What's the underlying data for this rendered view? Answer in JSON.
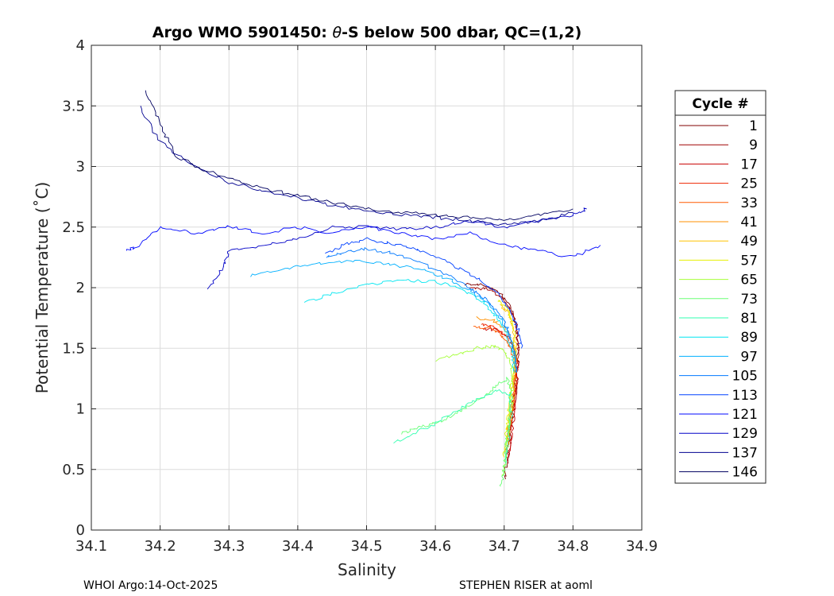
{
  "chart_data": {
    "type": "line",
    "title_prefix": "Argo WMO 5901450: ",
    "title_theta": "θ",
    "title_suffix": "-S below 500 dbar,  QC=(1,2)",
    "xlabel": "Salinity",
    "ylabel": "Potential Temperature (˚C)",
    "xlim": [
      34.1,
      34.9
    ],
    "ylim": [
      0,
      4
    ],
    "xticks": [
      34.1,
      34.2,
      34.3,
      34.4,
      34.5,
      34.6,
      34.7,
      34.8,
      34.9
    ],
    "xtick_labels": [
      "34.1",
      "34.2",
      "34.3",
      "34.4",
      "34.5",
      "34.6",
      "34.7",
      "34.8",
      "34.9"
    ],
    "yticks": [
      0,
      0.5,
      1,
      1.5,
      2,
      2.5,
      3,
      3.5,
      4
    ],
    "ytick_labels": [
      "0",
      "0.5",
      "1",
      "1.5",
      "2",
      "2.5",
      "3",
      "3.5",
      "4"
    ],
    "grid": true,
    "legend": {
      "title": "Cycle #",
      "placement": "outside-right",
      "entries": [
        "1",
        "9",
        "17",
        "25",
        "33",
        "41",
        "49",
        "57",
        "65",
        "73",
        "81",
        "89",
        "97",
        "105",
        "113",
        "121",
        "129",
        "137",
        "146"
      ],
      "colors": [
        "#800000",
        "#a00000",
        "#c80000",
        "#ee2400",
        "#ff5a00",
        "#ff9000",
        "#ffc400",
        "#e6f000",
        "#a6ff3a",
        "#6aff76",
        "#32ffb0",
        "#00e6f0",
        "#00b0ff",
        "#0078ff",
        "#0040ff",
        "#0008ff",
        "#0000c8",
        "#000090",
        "#000060"
      ]
    },
    "series": [
      {
        "cycle": "1",
        "points": [
          [
            34.645,
            2.03
          ],
          [
            34.67,
            2.02
          ],
          [
            34.69,
            1.97
          ],
          [
            34.705,
            1.88
          ],
          [
            34.715,
            1.75
          ],
          [
            34.72,
            1.6
          ],
          [
            34.72,
            1.4
          ],
          [
            34.716,
            1.2
          ],
          [
            34.712,
            1.0
          ],
          [
            34.708,
            0.8
          ],
          [
            34.704,
            0.6
          ],
          [
            34.702,
            0.42
          ]
        ]
      },
      {
        "cycle": "9",
        "points": [
          [
            34.65,
            2.0
          ],
          [
            34.675,
            1.99
          ],
          [
            34.695,
            1.93
          ],
          [
            34.708,
            1.83
          ],
          [
            34.716,
            1.7
          ],
          [
            34.72,
            1.55
          ],
          [
            34.72,
            1.35
          ],
          [
            34.717,
            1.15
          ],
          [
            34.713,
            0.95
          ],
          [
            34.709,
            0.75
          ],
          [
            34.706,
            0.55
          ]
        ]
      },
      {
        "cycle": "17",
        "points": [
          [
            34.67,
            1.66
          ],
          [
            34.69,
            1.65
          ],
          [
            34.705,
            1.6
          ],
          [
            34.715,
            1.5
          ],
          [
            34.72,
            1.35
          ],
          [
            34.718,
            1.15
          ],
          [
            34.714,
            0.95
          ],
          [
            34.71,
            0.75
          ],
          [
            34.706,
            0.6
          ]
        ]
      },
      {
        "cycle": "25",
        "points": [
          [
            34.665,
            1.7
          ],
          [
            34.685,
            1.68
          ],
          [
            34.7,
            1.62
          ],
          [
            34.712,
            1.52
          ],
          [
            34.718,
            1.38
          ],
          [
            34.716,
            1.18
          ],
          [
            34.712,
            0.98
          ],
          [
            34.708,
            0.8
          ]
        ]
      },
      {
        "cycle": "33",
        "points": [
          [
            34.655,
            1.68
          ],
          [
            34.68,
            1.67
          ],
          [
            34.698,
            1.6
          ],
          [
            34.71,
            1.5
          ],
          [
            34.716,
            1.36
          ],
          [
            34.714,
            1.16
          ],
          [
            34.71,
            0.96
          ],
          [
            34.706,
            0.78
          ],
          [
            34.703,
            0.62
          ]
        ]
      },
      {
        "cycle": "41",
        "points": [
          [
            34.66,
            1.75
          ],
          [
            34.683,
            1.73
          ],
          [
            34.7,
            1.67
          ],
          [
            34.711,
            1.56
          ],
          [
            34.717,
            1.42
          ],
          [
            34.716,
            1.22
          ],
          [
            34.712,
            1.02
          ],
          [
            34.708,
            0.82
          ],
          [
            34.704,
            0.65
          ]
        ]
      },
      {
        "cycle": "49",
        "points": [
          [
            34.695,
            1.85
          ],
          [
            34.705,
            1.8
          ],
          [
            34.712,
            1.7
          ],
          [
            34.716,
            1.55
          ],
          [
            34.715,
            1.35
          ],
          [
            34.711,
            1.15
          ],
          [
            34.707,
            0.95
          ],
          [
            34.704,
            0.75
          ]
        ]
      },
      {
        "cycle": "57",
        "points": [
          [
            34.69,
            1.9
          ],
          [
            34.702,
            1.85
          ],
          [
            34.71,
            1.75
          ],
          [
            34.715,
            1.6
          ],
          [
            34.715,
            1.4
          ],
          [
            34.711,
            1.2
          ],
          [
            34.707,
            1.0
          ],
          [
            34.703,
            0.8
          ],
          [
            34.7,
            0.6
          ]
        ]
      },
      {
        "cycle": "65",
        "points": [
          [
            34.6,
            1.4
          ],
          [
            34.63,
            1.45
          ],
          [
            34.66,
            1.5
          ],
          [
            34.685,
            1.52
          ],
          [
            34.7,
            1.48
          ],
          [
            34.71,
            1.38
          ],
          [
            34.713,
            1.2
          ],
          [
            34.71,
            1.0
          ],
          [
            34.706,
            0.8
          ],
          [
            34.702,
            0.6
          ],
          [
            34.698,
            0.45
          ]
        ]
      },
      {
        "cycle": "73",
        "points": [
          [
            34.55,
            0.8
          ],
          [
            34.58,
            0.85
          ],
          [
            34.61,
            0.9
          ],
          [
            34.64,
            1.0
          ],
          [
            34.67,
            1.1
          ],
          [
            34.69,
            1.2
          ],
          [
            34.705,
            1.25
          ],
          [
            34.71,
            1.1
          ],
          [
            34.707,
            0.9
          ],
          [
            34.703,
            0.7
          ],
          [
            34.7,
            0.5
          ],
          [
            34.695,
            0.36
          ]
        ]
      },
      {
        "cycle": "81",
        "points": [
          [
            34.54,
            0.72
          ],
          [
            34.57,
            0.8
          ],
          [
            34.6,
            0.88
          ],
          [
            34.63,
            0.98
          ],
          [
            34.66,
            1.08
          ],
          [
            34.69,
            1.15
          ],
          [
            34.708,
            1.12
          ],
          [
            34.71,
            0.95
          ],
          [
            34.706,
            0.75
          ],
          [
            34.702,
            0.55
          ]
        ]
      },
      {
        "cycle": "89",
        "points": [
          [
            34.41,
            1.88
          ],
          [
            34.45,
            1.95
          ],
          [
            34.5,
            2.02
          ],
          [
            34.55,
            2.06
          ],
          [
            34.6,
            2.05
          ],
          [
            34.64,
            1.98
          ],
          [
            34.67,
            1.88
          ],
          [
            34.69,
            1.75
          ],
          [
            34.705,
            1.6
          ],
          [
            34.712,
            1.45
          ],
          [
            34.715,
            1.3
          ]
        ]
      },
      {
        "cycle": "97",
        "points": [
          [
            34.33,
            2.1
          ],
          [
            34.38,
            2.15
          ],
          [
            34.43,
            2.2
          ],
          [
            34.48,
            2.22
          ],
          [
            34.53,
            2.2
          ],
          [
            34.58,
            2.15
          ],
          [
            34.62,
            2.07
          ],
          [
            34.65,
            1.98
          ],
          [
            34.675,
            1.87
          ],
          [
            34.695,
            1.75
          ],
          [
            34.708,
            1.6
          ],
          [
            34.715,
            1.45
          ],
          [
            34.717,
            1.3
          ]
        ]
      },
      {
        "cycle": "105",
        "points": [
          [
            34.44,
            2.25
          ],
          [
            34.47,
            2.3
          ],
          [
            34.5,
            2.32
          ],
          [
            34.54,
            2.28
          ],
          [
            34.58,
            2.2
          ],
          [
            34.62,
            2.1
          ],
          [
            34.65,
            2.0
          ],
          [
            34.675,
            1.9
          ],
          [
            34.695,
            1.78
          ],
          [
            34.708,
            1.62
          ],
          [
            34.715,
            1.45
          ],
          [
            34.718,
            1.3
          ]
        ]
      },
      {
        "cycle": "113",
        "points": [
          [
            34.44,
            2.28
          ],
          [
            34.47,
            2.36
          ],
          [
            34.5,
            2.4
          ],
          [
            34.54,
            2.36
          ],
          [
            34.58,
            2.3
          ],
          [
            34.62,
            2.2
          ],
          [
            34.66,
            2.08
          ],
          [
            34.69,
            1.95
          ],
          [
            34.71,
            1.8
          ],
          [
            34.72,
            1.65
          ],
          [
            34.725,
            1.5
          ]
        ]
      },
      {
        "cycle": "121",
        "points": [
          [
            34.15,
            2.3
          ],
          [
            34.17,
            2.35
          ],
          [
            34.2,
            2.5
          ],
          [
            34.25,
            2.45
          ],
          [
            34.3,
            2.5
          ],
          [
            34.35,
            2.45
          ],
          [
            34.4,
            2.5
          ],
          [
            34.45,
            2.45
          ],
          [
            34.5,
            2.5
          ],
          [
            34.55,
            2.45
          ],
          [
            34.6,
            2.4
          ],
          [
            34.65,
            2.45
          ],
          [
            34.7,
            2.35
          ],
          [
            34.75,
            2.3
          ],
          [
            34.8,
            2.25
          ],
          [
            34.84,
            2.35
          ]
        ]
      },
      {
        "cycle": "129",
        "points": [
          [
            34.27,
            2.0
          ],
          [
            34.29,
            2.15
          ],
          [
            34.3,
            2.3
          ],
          [
            34.35,
            2.35
          ],
          [
            34.4,
            2.4
          ],
          [
            34.45,
            2.5
          ],
          [
            34.5,
            2.5
          ],
          [
            34.55,
            2.48
          ],
          [
            34.6,
            2.5
          ],
          [
            34.65,
            2.55
          ],
          [
            34.7,
            2.5
          ],
          [
            34.75,
            2.55
          ],
          [
            34.8,
            2.6
          ],
          [
            34.82,
            2.65
          ]
        ]
      },
      {
        "cycle": "137",
        "points": [
          [
            34.17,
            3.5
          ],
          [
            34.2,
            3.2
          ],
          [
            34.25,
            3.0
          ],
          [
            34.3,
            2.87
          ],
          [
            34.35,
            2.8
          ],
          [
            34.4,
            2.74
          ],
          [
            34.45,
            2.68
          ],
          [
            34.5,
            2.64
          ],
          [
            34.55,
            2.6
          ],
          [
            34.6,
            2.58
          ],
          [
            34.65,
            2.55
          ],
          [
            34.7,
            2.52
          ],
          [
            34.75,
            2.55
          ],
          [
            34.8,
            2.62
          ]
        ]
      },
      {
        "cycle": "146",
        "points": [
          [
            34.18,
            3.62
          ],
          [
            34.2,
            3.35
          ],
          [
            34.22,
            3.1
          ],
          [
            34.26,
            2.98
          ],
          [
            34.3,
            2.9
          ],
          [
            34.35,
            2.82
          ],
          [
            34.4,
            2.76
          ],
          [
            34.45,
            2.7
          ],
          [
            34.5,
            2.65
          ],
          [
            34.55,
            2.62
          ],
          [
            34.6,
            2.6
          ],
          [
            34.65,
            2.58
          ],
          [
            34.7,
            2.55
          ],
          [
            34.75,
            2.6
          ],
          [
            34.8,
            2.65
          ]
        ]
      }
    ]
  },
  "footer": {
    "left": "WHOI Argo:14-Oct-2025",
    "right": "STEPHEN RISER at aoml"
  }
}
